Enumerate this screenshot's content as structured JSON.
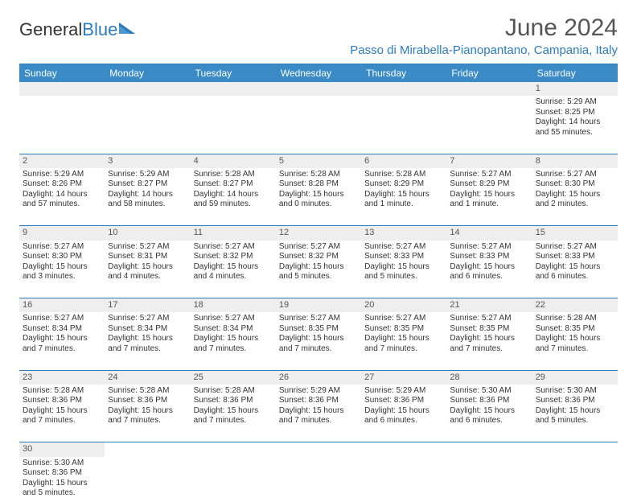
{
  "logo": {
    "text1": "General",
    "text2": "Blue"
  },
  "title": "June 2024",
  "location": "Passo di Mirabella-Pianopantano, Campania, Italy",
  "colors": {
    "header_bg": "#3a8ac6",
    "header_border": "#2b7bbf",
    "text": "#333333",
    "title_text": "#555555",
    "accent": "#2b7bbf",
    "daynum_bg": "#eeeeee",
    "page_bg": "#ffffff"
  },
  "weekdays": [
    "Sunday",
    "Monday",
    "Tuesday",
    "Wednesday",
    "Thursday",
    "Friday",
    "Saturday"
  ],
  "weeks": [
    [
      null,
      null,
      null,
      null,
      null,
      null,
      {
        "n": "1",
        "sr": "5:29 AM",
        "ss": "8:25 PM",
        "dl": "14 hours and 55 minutes."
      }
    ],
    [
      {
        "n": "2",
        "sr": "5:29 AM",
        "ss": "8:26 PM",
        "dl": "14 hours and 57 minutes."
      },
      {
        "n": "3",
        "sr": "5:29 AM",
        "ss": "8:27 PM",
        "dl": "14 hours and 58 minutes."
      },
      {
        "n": "4",
        "sr": "5:28 AM",
        "ss": "8:27 PM",
        "dl": "14 hours and 59 minutes."
      },
      {
        "n": "5",
        "sr": "5:28 AM",
        "ss": "8:28 PM",
        "dl": "15 hours and 0 minutes."
      },
      {
        "n": "6",
        "sr": "5:28 AM",
        "ss": "8:29 PM",
        "dl": "15 hours and 1 minute."
      },
      {
        "n": "7",
        "sr": "5:27 AM",
        "ss": "8:29 PM",
        "dl": "15 hours and 1 minute."
      },
      {
        "n": "8",
        "sr": "5:27 AM",
        "ss": "8:30 PM",
        "dl": "15 hours and 2 minutes."
      }
    ],
    [
      {
        "n": "9",
        "sr": "5:27 AM",
        "ss": "8:30 PM",
        "dl": "15 hours and 3 minutes."
      },
      {
        "n": "10",
        "sr": "5:27 AM",
        "ss": "8:31 PM",
        "dl": "15 hours and 4 minutes."
      },
      {
        "n": "11",
        "sr": "5:27 AM",
        "ss": "8:32 PM",
        "dl": "15 hours and 4 minutes."
      },
      {
        "n": "12",
        "sr": "5:27 AM",
        "ss": "8:32 PM",
        "dl": "15 hours and 5 minutes."
      },
      {
        "n": "13",
        "sr": "5:27 AM",
        "ss": "8:33 PM",
        "dl": "15 hours and 5 minutes."
      },
      {
        "n": "14",
        "sr": "5:27 AM",
        "ss": "8:33 PM",
        "dl": "15 hours and 6 minutes."
      },
      {
        "n": "15",
        "sr": "5:27 AM",
        "ss": "8:33 PM",
        "dl": "15 hours and 6 minutes."
      }
    ],
    [
      {
        "n": "16",
        "sr": "5:27 AM",
        "ss": "8:34 PM",
        "dl": "15 hours and 7 minutes."
      },
      {
        "n": "17",
        "sr": "5:27 AM",
        "ss": "8:34 PM",
        "dl": "15 hours and 7 minutes."
      },
      {
        "n": "18",
        "sr": "5:27 AM",
        "ss": "8:34 PM",
        "dl": "15 hours and 7 minutes."
      },
      {
        "n": "19",
        "sr": "5:27 AM",
        "ss": "8:35 PM",
        "dl": "15 hours and 7 minutes."
      },
      {
        "n": "20",
        "sr": "5:27 AM",
        "ss": "8:35 PM",
        "dl": "15 hours and 7 minutes."
      },
      {
        "n": "21",
        "sr": "5:27 AM",
        "ss": "8:35 PM",
        "dl": "15 hours and 7 minutes."
      },
      {
        "n": "22",
        "sr": "5:28 AM",
        "ss": "8:35 PM",
        "dl": "15 hours and 7 minutes."
      }
    ],
    [
      {
        "n": "23",
        "sr": "5:28 AM",
        "ss": "8:36 PM",
        "dl": "15 hours and 7 minutes."
      },
      {
        "n": "24",
        "sr": "5:28 AM",
        "ss": "8:36 PM",
        "dl": "15 hours and 7 minutes."
      },
      {
        "n": "25",
        "sr": "5:28 AM",
        "ss": "8:36 PM",
        "dl": "15 hours and 7 minutes."
      },
      {
        "n": "26",
        "sr": "5:29 AM",
        "ss": "8:36 PM",
        "dl": "15 hours and 7 minutes."
      },
      {
        "n": "27",
        "sr": "5:29 AM",
        "ss": "8:36 PM",
        "dl": "15 hours and 6 minutes."
      },
      {
        "n": "28",
        "sr": "5:30 AM",
        "ss": "8:36 PM",
        "dl": "15 hours and 6 minutes."
      },
      {
        "n": "29",
        "sr": "5:30 AM",
        "ss": "8:36 PM",
        "dl": "15 hours and 5 minutes."
      }
    ],
    [
      {
        "n": "30",
        "sr": "5:30 AM",
        "ss": "8:36 PM",
        "dl": "15 hours and 5 minutes."
      },
      null,
      null,
      null,
      null,
      null,
      null
    ]
  ],
  "labels": {
    "sunrise": "Sunrise:",
    "sunset": "Sunset:",
    "daylight": "Daylight:"
  }
}
